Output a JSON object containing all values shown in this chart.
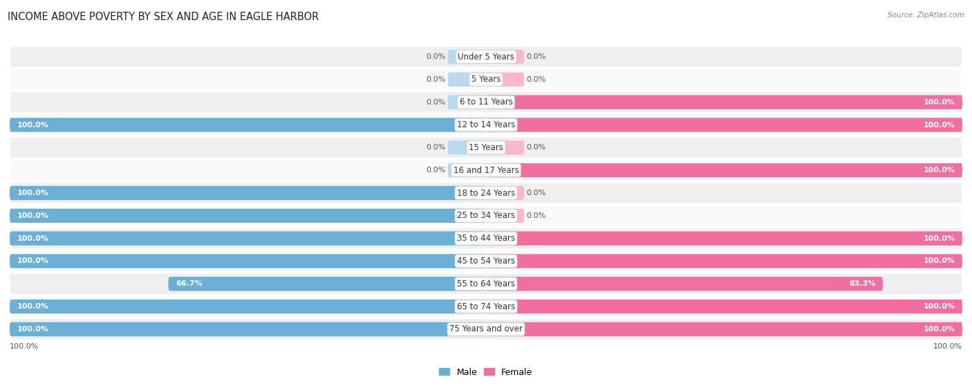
{
  "title": "INCOME ABOVE POVERTY BY SEX AND AGE IN EAGLE HARBOR",
  "source": "Source: ZipAtlas.com",
  "categories": [
    "Under 5 Years",
    "5 Years",
    "6 to 11 Years",
    "12 to 14 Years",
    "15 Years",
    "16 and 17 Years",
    "18 to 24 Years",
    "25 to 34 Years",
    "35 to 44 Years",
    "45 to 54 Years",
    "55 to 64 Years",
    "65 to 74 Years",
    "75 Years and over"
  ],
  "male_values": [
    0.0,
    0.0,
    0.0,
    100.0,
    0.0,
    0.0,
    100.0,
    100.0,
    100.0,
    100.0,
    66.7,
    100.0,
    100.0
  ],
  "female_values": [
    0.0,
    0.0,
    100.0,
    100.0,
    0.0,
    100.0,
    0.0,
    0.0,
    100.0,
    100.0,
    83.3,
    100.0,
    100.0
  ],
  "male_color": "#6aafd6",
  "female_color": "#f06fa0",
  "male_color_light": "#b8d9ee",
  "female_color_light": "#f9b8d0",
  "row_bg_odd": "#efefef",
  "row_bg_even": "#fafafa",
  "title_fontsize": 10.5,
  "label_fontsize": 8.5,
  "value_fontsize": 8.0,
  "legend_fontsize": 9.0,
  "stub_value": 8.0,
  "max_value": 100.0,
  "axis_label_left": "100.0%",
  "axis_label_right": "100.0%"
}
